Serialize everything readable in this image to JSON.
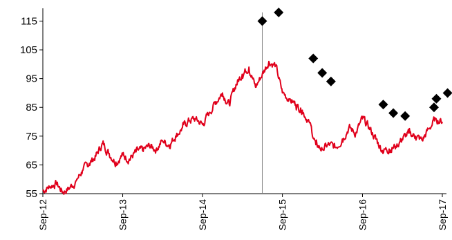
{
  "chart_data": {
    "type": "line",
    "title": "",
    "xlabel": "",
    "ylabel": "",
    "ylim": [
      55,
      118
    ],
    "xlim": [
      "2012-09-01",
      "2017-09-01"
    ],
    "yticks": [
      55,
      65,
      75,
      85,
      95,
      105,
      115
    ],
    "xticks": [
      {
        "label": "Sep-12",
        "date": "2012-09-01"
      },
      {
        "label": "Sep-13",
        "date": "2013-09-01"
      },
      {
        "label": "Sep-14",
        "date": "2014-09-01"
      },
      {
        "label": "Sep-15",
        "date": "2015-09-01"
      },
      {
        "label": "Sep-16",
        "date": "2016-09-01"
      },
      {
        "label": "Sep-17",
        "date": "2017-09-01"
      }
    ],
    "grid": false,
    "legend": "none",
    "vertical_line": {
      "date": "2015-06-01"
    },
    "series": [
      {
        "kind": "line",
        "color": "#e0001b",
        "points": [
          [
            "2012-09-01",
            56.0
          ],
          [
            "2012-10-01",
            57.5
          ],
          [
            "2012-11-01",
            58.6
          ],
          [
            "2012-12-01",
            55.6
          ],
          [
            "2013-01-01",
            57.0
          ],
          [
            "2013-02-01",
            59.5
          ],
          [
            "2013-03-01",
            63.0
          ],
          [
            "2013-04-01",
            65.5
          ],
          [
            "2013-05-01",
            68.0
          ],
          [
            "2013-06-01",
            72.5
          ],
          [
            "2013-07-01",
            69.0
          ],
          [
            "2013-08-01",
            66.0
          ],
          [
            "2013-09-01",
            68.5
          ],
          [
            "2013-10-01",
            67.0
          ],
          [
            "2013-11-01",
            69.5
          ],
          [
            "2013-12-01",
            70.0
          ],
          [
            "2014-01-01",
            71.5
          ],
          [
            "2014-02-01",
            70.5
          ],
          [
            "2014-03-01",
            73.5
          ],
          [
            "2014-04-01",
            72.0
          ],
          [
            "2014-05-01",
            75.0
          ],
          [
            "2014-06-01",
            78.0
          ],
          [
            "2014-07-01",
            80.5
          ],
          [
            "2014-08-01",
            81.0
          ],
          [
            "2014-09-01",
            79.0
          ],
          [
            "2014-10-01",
            83.0
          ],
          [
            "2014-11-01",
            87.0
          ],
          [
            "2014-12-01",
            90.0
          ],
          [
            "2015-01-01",
            86.0
          ],
          [
            "2015-02-01",
            93.0
          ],
          [
            "2015-03-01",
            96.5
          ],
          [
            "2015-04-01",
            99.0
          ],
          [
            "2015-05-01",
            92.0
          ],
          [
            "2015-06-01",
            96.5
          ],
          [
            "2015-07-01",
            101.0
          ],
          [
            "2015-08-01",
            99.5
          ],
          [
            "2015-09-01",
            90.0
          ],
          [
            "2015-10-01",
            88.0
          ],
          [
            "2015-11-01",
            86.0
          ],
          [
            "2015-12-01",
            84.0
          ],
          [
            "2016-01-01",
            80.0
          ],
          [
            "2016-02-01",
            72.0
          ],
          [
            "2016-03-01",
            70.5
          ],
          [
            "2016-04-01",
            72.0
          ],
          [
            "2016-05-01",
            71.0
          ],
          [
            "2016-06-01",
            74.0
          ],
          [
            "2016-07-01",
            78.0
          ],
          [
            "2016-08-01",
            76.0
          ],
          [
            "2016-09-01",
            81.0
          ],
          [
            "2016-10-01",
            78.0
          ],
          [
            "2016-11-01",
            74.0
          ],
          [
            "2016-12-01",
            70.0
          ],
          [
            "2017-01-01",
            70.5
          ],
          [
            "2017-02-01",
            71.5
          ],
          [
            "2017-03-01",
            74.0
          ],
          [
            "2017-04-01",
            76.0
          ],
          [
            "2017-05-01",
            75.0
          ],
          [
            "2017-06-01",
            73.5
          ],
          [
            "2017-07-01",
            77.5
          ],
          [
            "2017-08-01",
            81.0
          ],
          [
            "2017-09-01",
            80.0
          ]
        ]
      },
      {
        "kind": "scatter",
        "color": "#000000",
        "marker": "diamond",
        "points": [
          [
            "2015-06-01",
            115
          ],
          [
            "2015-08-15",
            118
          ],
          [
            "2016-01-20",
            102
          ],
          [
            "2016-03-01",
            97
          ],
          [
            "2016-04-10",
            94
          ],
          [
            "2016-12-05",
            86
          ],
          [
            "2017-01-20",
            83
          ],
          [
            "2017-03-15",
            82
          ],
          [
            "2017-07-25",
            85
          ],
          [
            "2017-08-05",
            88
          ],
          [
            "2017-09-25",
            90
          ]
        ]
      }
    ]
  }
}
